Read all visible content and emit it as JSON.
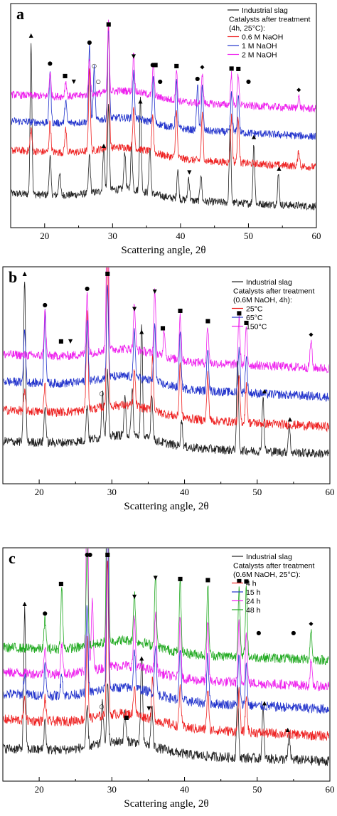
{
  "figure": {
    "panels": [
      {
        "letter": "a",
        "xlabel": "Scattering angle, 2θ",
        "legend": {
          "raw_label": "Industrial slag",
          "header": [
            "Catalysts after treatment",
            "(4h, 25°C):"
          ],
          "entries": [
            {
              "name": "0.6 M NaOH",
              "color": "#ee2222"
            },
            {
              "name": "1 M NaOH",
              "color": "#2233cc"
            },
            {
              "name": "2 M NaOH",
              "color": "#ee22ee"
            }
          ]
        }
      },
      {
        "letter": "b",
        "xlabel": "Scattering angle, 2θ",
        "legend": {
          "raw_label": "Industrial slag",
          "header": [
            "Catalysts after treatment",
            "(0.6M NaOH, 4h):"
          ],
          "entries": [
            {
              "name": "25°C",
              "color": "#ee2222"
            },
            {
              "name": "65°C",
              "color": "#2233cc"
            },
            {
              "name": "150°C",
              "color": "#ee22ee"
            }
          ]
        }
      },
      {
        "letter": "c",
        "xlabel": "Scattering angle, 2θ",
        "legend": {
          "raw_label": "Industrial slag",
          "header": [
            "Catalysts after treatment",
            "(0.6M NaOH, 25°C):"
          ],
          "entries": [
            {
              "name": "4 h",
              "color": "#ee2222"
            },
            {
              "name": "15 h",
              "color": "#2233cc"
            },
            {
              "name": "24 h",
              "color": "#ee22ee"
            },
            {
              "name": "48 h",
              "color": "#22aa22"
            }
          ]
        }
      }
    ]
  },
  "chart_data": [
    {
      "type": "line",
      "panel": "a",
      "xlabel": "Scattering angle, 2θ",
      "xlim": [
        15,
        60
      ],
      "xticks": [
        20,
        30,
        40,
        50,
        60
      ],
      "y_axis": "none (stacked XRD patterns, arbitrary units)",
      "series": [
        {
          "name": "Industrial slag",
          "color": "#222222",
          "peaks": [
            {
              "x": 18.0,
              "h": 1.0
            },
            {
              "x": 20.8,
              "h": 0.25
            },
            {
              "x": 22.2,
              "h": 0.15
            },
            {
              "x": 26.6,
              "h": 0.25
            },
            {
              "x": 28.7,
              "h": 0.3
            },
            {
              "x": 29.4,
              "h": 0.55
            },
            {
              "x": 31.8,
              "h": 0.25
            },
            {
              "x": 32.8,
              "h": 0.3
            },
            {
              "x": 34.1,
              "h": 0.6
            },
            {
              "x": 35.5,
              "h": 0.3
            },
            {
              "x": 39.6,
              "h": 0.2
            },
            {
              "x": 41.2,
              "h": 0.15
            },
            {
              "x": 43.0,
              "h": 0.18
            },
            {
              "x": 47.3,
              "h": 0.5
            },
            {
              "x": 50.8,
              "h": 0.4
            },
            {
              "x": 54.4,
              "h": 0.2
            }
          ]
        },
        {
          "name": "0.6 M NaOH",
          "color": "#ee2222",
          "peaks": [
            {
              "x": 18.0,
              "h": 0.15
            },
            {
              "x": 20.8,
              "h": 0.2
            },
            {
              "x": 23.1,
              "h": 0.15
            },
            {
              "x": 26.6,
              "h": 0.55
            },
            {
              "x": 29.4,
              "h": 0.8
            },
            {
              "x": 33.1,
              "h": 0.25
            },
            {
              "x": 35.9,
              "h": 0.25
            },
            {
              "x": 39.4,
              "h": 0.3
            },
            {
              "x": 43.2,
              "h": 0.3
            },
            {
              "x": 47.5,
              "h": 0.3
            },
            {
              "x": 48.5,
              "h": 0.3
            },
            {
              "x": 57.4,
              "h": 0.1
            }
          ]
        },
        {
          "name": "1 M NaOH",
          "color": "#2233cc",
          "peaks": [
            {
              "x": 20.8,
              "h": 0.35
            },
            {
              "x": 23.1,
              "h": 0.15
            },
            {
              "x": 26.6,
              "h": 0.5
            },
            {
              "x": 27.3,
              "h": 0.35
            },
            {
              "x": 29.4,
              "h": 0.6
            },
            {
              "x": 33.1,
              "h": 0.3
            },
            {
              "x": 36.0,
              "h": 0.3
            },
            {
              "x": 39.4,
              "h": 0.3
            },
            {
              "x": 42.5,
              "h": 0.3
            },
            {
              "x": 43.2,
              "h": 0.3
            },
            {
              "x": 47.5,
              "h": 0.25
            },
            {
              "x": 48.5,
              "h": 0.25
            }
          ]
        },
        {
          "name": "2 M NaOH",
          "color": "#ee22ee",
          "peaks": [
            {
              "x": 20.8,
              "h": 0.15
            },
            {
              "x": 23.1,
              "h": 0.1
            },
            {
              "x": 26.6,
              "h": 0.25
            },
            {
              "x": 29.4,
              "h": 0.45
            },
            {
              "x": 33.1,
              "h": 0.25
            },
            {
              "x": 36.0,
              "h": 0.2
            },
            {
              "x": 39.4,
              "h": 0.2
            },
            {
              "x": 43.2,
              "h": 0.2
            },
            {
              "x": 47.5,
              "h": 0.2
            },
            {
              "x": 48.5,
              "h": 0.2
            },
            {
              "x": 57.4,
              "h": 0.08
            }
          ]
        }
      ],
      "markers": [
        {
          "x": 18.0,
          "sym": "▲"
        },
        {
          "x": 20.8,
          "sym": "●"
        },
        {
          "x": 23.0,
          "sym": "■"
        },
        {
          "x": 24.3,
          "sym": "▼"
        },
        {
          "x": 26.6,
          "sym": "●"
        },
        {
          "x": 27.3,
          "sym": "○"
        },
        {
          "x": 27.9,
          "sym": "○"
        },
        {
          "x": 28.7,
          "sym": "▲"
        },
        {
          "x": 29.4,
          "sym": "■"
        },
        {
          "x": 33.1,
          "sym": "▼"
        },
        {
          "x": 34.1,
          "sym": "▲"
        },
        {
          "x": 35.9,
          "sym": "●"
        },
        {
          "x": 36.3,
          "sym": "■"
        },
        {
          "x": 37.0,
          "sym": "●"
        },
        {
          "x": 39.4,
          "sym": "■"
        },
        {
          "x": 41.3,
          "sym": "▼"
        },
        {
          "x": 42.5,
          "sym": "●"
        },
        {
          "x": 43.2,
          "sym": "◆"
        },
        {
          "x": 47.5,
          "sym": "■"
        },
        {
          "x": 48.5,
          "sym": "■"
        },
        {
          "x": 50.0,
          "sym": "●"
        },
        {
          "x": 50.8,
          "sym": "▲"
        },
        {
          "x": 54.5,
          "sym": "▲"
        },
        {
          "x": 57.4,
          "sym": "◆"
        }
      ]
    },
    {
      "type": "line",
      "panel": "b",
      "xlabel": "Scattering angle, 2θ",
      "xlim": [
        15,
        60
      ],
      "xticks": [
        20,
        30,
        40,
        50,
        60
      ],
      "y_axis": "none (stacked XRD patterns, arbitrary units)",
      "series": [
        {
          "name": "Industrial slag",
          "color": "#222222",
          "peaks": [
            {
              "x": 18.0,
              "h": 0.9
            },
            {
              "x": 20.8,
              "h": 0.2
            },
            {
              "x": 26.6,
              "h": 0.2
            },
            {
              "x": 28.7,
              "h": 0.25
            },
            {
              "x": 29.4,
              "h": 0.35
            },
            {
              "x": 31.8,
              "h": 0.2
            },
            {
              "x": 32.8,
              "h": 0.25
            },
            {
              "x": 34.1,
              "h": 0.6
            },
            {
              "x": 35.5,
              "h": 0.25
            },
            {
              "x": 39.6,
              "h": 0.15
            },
            {
              "x": 47.3,
              "h": 0.5
            },
            {
              "x": 50.8,
              "h": 0.3
            },
            {
              "x": 54.4,
              "h": 0.15
            }
          ]
        },
        {
          "name": "25°C",
          "color": "#ee2222",
          "peaks": [
            {
              "x": 18.0,
              "h": 0.1
            },
            {
              "x": 20.8,
              "h": 0.15
            },
            {
              "x": 26.6,
              "h": 0.55
            },
            {
              "x": 29.4,
              "h": 0.9
            },
            {
              "x": 33.1,
              "h": 0.2
            },
            {
              "x": 35.6,
              "h": 0.3
            },
            {
              "x": 39.4,
              "h": 0.3
            },
            {
              "x": 43.2,
              "h": 0.25
            },
            {
              "x": 47.5,
              "h": 0.25
            },
            {
              "x": 48.5,
              "h": 0.2
            }
          ]
        },
        {
          "name": "65°C",
          "color": "#2233cc",
          "peaks": [
            {
              "x": 18.0,
              "h": 0.3
            },
            {
              "x": 20.8,
              "h": 0.4
            },
            {
              "x": 26.6,
              "h": 0.35
            },
            {
              "x": 29.4,
              "h": 0.5
            },
            {
              "x": 33.1,
              "h": 0.25
            },
            {
              "x": 35.9,
              "h": 0.3
            },
            {
              "x": 39.4,
              "h": 0.3
            },
            {
              "x": 43.2,
              "h": 0.25
            },
            {
              "x": 47.5,
              "h": 0.25
            },
            {
              "x": 48.5,
              "h": 0.2
            }
          ]
        },
        {
          "name": "150°C",
          "color": "#ee22ee",
          "peaks": [
            {
              "x": 20.8,
              "h": 0.25
            },
            {
              "x": 26.6,
              "h": 0.35
            },
            {
              "x": 29.4,
              "h": 1.3
            },
            {
              "x": 33.1,
              "h": 0.25
            },
            {
              "x": 35.9,
              "h": 0.35
            },
            {
              "x": 37.2,
              "h": 0.15
            },
            {
              "x": 39.4,
              "h": 0.25
            },
            {
              "x": 43.2,
              "h": 0.2
            },
            {
              "x": 47.5,
              "h": 0.25
            },
            {
              "x": 48.5,
              "h": 0.2
            },
            {
              "x": 57.4,
              "h": 0.15
            }
          ]
        }
      ],
      "markers": [
        {
          "x": 18.0,
          "sym": "▲"
        },
        {
          "x": 20.8,
          "sym": "●"
        },
        {
          "x": 23.0,
          "sym": "■"
        },
        {
          "x": 24.3,
          "sym": "▼"
        },
        {
          "x": 26.6,
          "sym": "●"
        },
        {
          "x": 28.6,
          "sym": "○"
        },
        {
          "x": 29.4,
          "sym": "■"
        },
        {
          "x": 33.1,
          "sym": "▼"
        },
        {
          "x": 34.1,
          "sym": "▲"
        },
        {
          "x": 35.9,
          "sym": "▼"
        },
        {
          "x": 37.0,
          "sym": "■"
        },
        {
          "x": 39.4,
          "sym": "■"
        },
        {
          "x": 43.2,
          "sym": "■"
        },
        {
          "x": 47.5,
          "sym": "■"
        },
        {
          "x": 48.5,
          "sym": "■"
        },
        {
          "x": 51.0,
          "sym": "▲"
        },
        {
          "x": 54.5,
          "sym": "▲"
        },
        {
          "x": 57.4,
          "sym": "◆"
        }
      ]
    },
    {
      "type": "line",
      "panel": "c",
      "xlabel": "Scattering angle, 2θ",
      "xlim": [
        15,
        60
      ],
      "xticks": [
        20,
        30,
        40,
        50,
        60
      ],
      "y_axis": "none (stacked XRD patterns, arbitrary units)",
      "series": [
        {
          "name": "Industrial slag",
          "color": "#222222",
          "peaks": [
            {
              "x": 18.0,
              "h": 0.7
            },
            {
              "x": 20.8,
              "h": 0.15
            },
            {
              "x": 26.6,
              "h": 0.2
            },
            {
              "x": 28.7,
              "h": 0.2
            },
            {
              "x": 29.4,
              "h": 0.3
            },
            {
              "x": 31.8,
              "h": 0.15
            },
            {
              "x": 34.1,
              "h": 0.45
            },
            {
              "x": 35.5,
              "h": 0.2
            },
            {
              "x": 47.3,
              "h": 0.35
            },
            {
              "x": 50.8,
              "h": 0.25
            },
            {
              "x": 54.4,
              "h": 0.12
            }
          ]
        },
        {
          "name": "4 h",
          "color": "#ee2222",
          "peaks": [
            {
              "x": 18.0,
              "h": 0.1
            },
            {
              "x": 20.8,
              "h": 0.12
            },
            {
              "x": 26.6,
              "h": 0.4
            },
            {
              "x": 29.4,
              "h": 0.8
            },
            {
              "x": 33.1,
              "h": 0.15
            },
            {
              "x": 35.6,
              "h": 0.2
            },
            {
              "x": 39.4,
              "h": 0.2
            },
            {
              "x": 43.2,
              "h": 0.2
            },
            {
              "x": 47.5,
              "h": 0.2
            },
            {
              "x": 48.5,
              "h": 0.18
            }
          ]
        },
        {
          "name": "15 h",
          "color": "#2233cc",
          "peaks": [
            {
              "x": 18.0,
              "h": 0.1
            },
            {
              "x": 20.8,
              "h": 0.15
            },
            {
              "x": 23.1,
              "h": 0.12
            },
            {
              "x": 26.6,
              "h": 0.45
            },
            {
              "x": 29.4,
              "h": 0.9
            },
            {
              "x": 33.1,
              "h": 0.2
            },
            {
              "x": 36.0,
              "h": 0.25
            },
            {
              "x": 39.4,
              "h": 0.25
            },
            {
              "x": 43.2,
              "h": 0.25
            },
            {
              "x": 47.5,
              "h": 0.25
            },
            {
              "x": 48.5,
              "h": 0.2
            }
          ]
        },
        {
          "name": "24 h",
          "color": "#ee22ee",
          "peaks": [
            {
              "x": 20.8,
              "h": 0.15
            },
            {
              "x": 23.1,
              "h": 0.15
            },
            {
              "x": 26.6,
              "h": 1.2
            },
            {
              "x": 27.3,
              "h": 0.35
            },
            {
              "x": 29.4,
              "h": 1.1
            },
            {
              "x": 33.1,
              "h": 0.25
            },
            {
              "x": 36.0,
              "h": 0.3
            },
            {
              "x": 39.4,
              "h": 0.3
            },
            {
              "x": 43.2,
              "h": 0.3
            },
            {
              "x": 47.5,
              "h": 0.3
            },
            {
              "x": 48.5,
              "h": 0.25
            },
            {
              "x": 57.4,
              "h": 0.12
            }
          ]
        },
        {
          "name": "48 h",
          "color": "#22aa22",
          "peaks": [
            {
              "x": 20.8,
              "h": 0.15
            },
            {
              "x": 23.1,
              "h": 0.3
            },
            {
              "x": 26.6,
              "h": 0.5
            },
            {
              "x": 29.4,
              "h": 1.4
            },
            {
              "x": 33.1,
              "h": 0.25
            },
            {
              "x": 36.0,
              "h": 0.35
            },
            {
              "x": 39.4,
              "h": 0.35
            },
            {
              "x": 43.2,
              "h": 0.35
            },
            {
              "x": 47.5,
              "h": 0.35
            },
            {
              "x": 48.5,
              "h": 0.35
            },
            {
              "x": 57.4,
              "h": 0.15
            }
          ]
        }
      ],
      "markers": [
        {
          "x": 18.0,
          "sym": "▲"
        },
        {
          "x": 20.8,
          "sym": "●"
        },
        {
          "x": 23.0,
          "sym": "■"
        },
        {
          "x": 26.6,
          "sym": "●"
        },
        {
          "x": 27.0,
          "sym": "●"
        },
        {
          "x": 28.6,
          "sym": "○"
        },
        {
          "x": 29.4,
          "sym": "■"
        },
        {
          "x": 32.0,
          "sym": "■"
        },
        {
          "x": 33.1,
          "sym": "▼"
        },
        {
          "x": 34.1,
          "sym": "▲"
        },
        {
          "x": 35.1,
          "sym": "▼"
        },
        {
          "x": 36.0,
          "sym": "▼"
        },
        {
          "x": 39.4,
          "sym": "■"
        },
        {
          "x": 43.2,
          "sym": "■"
        },
        {
          "x": 47.5,
          "sym": "■"
        },
        {
          "x": 48.5,
          "sym": "■"
        },
        {
          "x": 50.2,
          "sym": "●"
        },
        {
          "x": 51.0,
          "sym": "▲"
        },
        {
          "x": 54.2,
          "sym": "▲"
        },
        {
          "x": 55.0,
          "sym": "●"
        },
        {
          "x": 57.4,
          "sym": "◆"
        }
      ]
    }
  ]
}
